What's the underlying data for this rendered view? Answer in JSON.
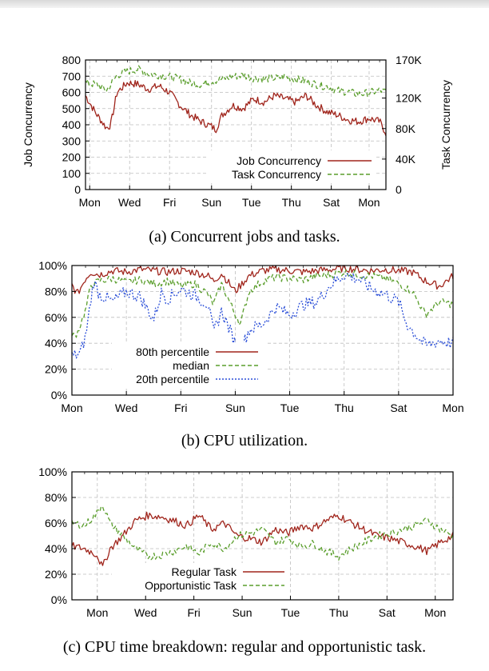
{
  "chart_data": [
    {
      "type": "line",
      "caption": "(a) Concurrent jobs and tasks.",
      "ylabel": "Job Concurrency",
      "y2label": "Task Concurrency",
      "ylim": [
        0,
        800
      ],
      "y2lim": [
        0,
        170000
      ],
      "yticks": [
        "800",
        "700",
        "600",
        "500",
        "400",
        "300",
        "200",
        "100",
        "0"
      ],
      "y2ticks": [
        {
          "label": "170K",
          "value": 170000
        },
        {
          "label": "120K",
          "value": 120000
        },
        {
          "label": "80K",
          "value": 80000
        },
        {
          "label": "40K",
          "value": 40000
        },
        {
          "label": "0",
          "value": 0
        }
      ],
      "xticks": [
        "Mon",
        "Wed",
        "Fri",
        "Sun",
        "Tue",
        "Thu",
        "Sat",
        "Mon"
      ],
      "xtick_days": [
        0.2,
        2.1,
        4.0,
        6.0,
        7.9,
        9.8,
        11.7,
        13.5
      ],
      "xrange_days": [
        0,
        14.3
      ],
      "legend_position": "lower-right",
      "grid": true,
      "series": [
        {
          "name": "Job Concurrency",
          "axis": "left",
          "color": "#a0251c",
          "dash": "solid",
          "x": [
            0,
            0.5,
            1,
            1.2,
            1.5,
            2,
            2.5,
            3,
            3.5,
            4,
            4.5,
            5,
            5.5,
            6,
            6.2,
            6.5,
            7,
            7.5,
            8,
            8.5,
            9,
            9.5,
            10,
            10.5,
            11,
            11.5,
            12,
            12.5,
            13,
            13.5,
            14,
            14.3
          ],
          "values": [
            580,
            470,
            380,
            400,
            600,
            660,
            650,
            620,
            640,
            600,
            520,
            460,
            420,
            390,
            370,
            460,
            520,
            500,
            560,
            540,
            580,
            560,
            540,
            580,
            520,
            480,
            460,
            430,
            420,
            440,
            420,
            350
          ]
        },
        {
          "name": "Task Concurrency",
          "axis": "right",
          "color": "#5a9e2c",
          "dash": "dashed",
          "x": [
            0,
            0.5,
            1,
            1.5,
            2,
            2.5,
            3,
            3.5,
            4,
            4.5,
            5,
            5.5,
            6,
            6.5,
            7,
            7.5,
            8,
            8.5,
            9,
            9.5,
            10,
            10.5,
            11,
            11.5,
            12,
            12.5,
            13,
            13.5,
            14,
            14.3
          ],
          "values": [
            140000,
            138000,
            130000,
            150000,
            155000,
            158000,
            152000,
            150000,
            148000,
            145000,
            140000,
            138000,
            142000,
            145000,
            148000,
            150000,
            146000,
            145000,
            146000,
            148000,
            145000,
            142000,
            138000,
            135000,
            130000,
            128000,
            125000,
            127000,
            130000,
            128000
          ]
        }
      ]
    },
    {
      "type": "line",
      "caption": "(b) CPU utilization.",
      "ylim": [
        0,
        100
      ],
      "yticks": [
        "100%",
        "80%",
        "60%",
        "40%",
        "20%",
        "0%"
      ],
      "xticks": [
        "Mon",
        "Wed",
        "Fri",
        "Sun",
        "Tue",
        "Thu",
        "Sat",
        "Mon"
      ],
      "xtick_days": [
        0,
        2,
        4,
        6,
        8,
        10,
        12,
        14
      ],
      "xrange_days": [
        0,
        14
      ],
      "legend_position": "lower-left",
      "grid": true,
      "series": [
        {
          "name": "80th percentile",
          "color": "#a0251c",
          "dash": "solid",
          "x": [
            0,
            0.2,
            0.5,
            0.7,
            1,
            1.5,
            2,
            2.5,
            3,
            3.5,
            4,
            4.5,
            5,
            5.2,
            5.5,
            6,
            6.5,
            7,
            7.5,
            8,
            8.5,
            9,
            9.5,
            10,
            10.5,
            11,
            11.5,
            12,
            12.5,
            13,
            13.5,
            14
          ],
          "values": [
            85,
            78,
            90,
            95,
            93,
            96,
            95,
            97,
            96,
            95,
            96,
            95,
            92,
            88,
            94,
            80,
            92,
            96,
            97,
            96,
            95,
            96,
            97,
            98,
            97,
            96,
            97,
            96,
            95,
            88,
            84,
            92
          ]
        },
        {
          "name": "median",
          "color": "#5a9e2c",
          "dash": "dashed",
          "x": [
            0,
            0.2,
            0.5,
            0.7,
            1,
            1.5,
            2,
            2.5,
            3,
            3.5,
            4,
            4.5,
            5,
            5.2,
            5.5,
            6,
            6.2,
            6.5,
            7,
            7.5,
            8,
            8.5,
            9,
            9.5,
            10,
            10.5,
            11,
            11.5,
            12,
            12.5,
            13,
            13.5,
            14
          ],
          "values": [
            45,
            48,
            65,
            85,
            88,
            90,
            87,
            89,
            86,
            88,
            84,
            86,
            78,
            70,
            86,
            62,
            55,
            80,
            88,
            91,
            90,
            89,
            92,
            93,
            95,
            93,
            92,
            90,
            86,
            80,
            62,
            72,
            70
          ]
        },
        {
          "name": "20th percentile",
          "color": "#2b4fd8",
          "dash": "dotted",
          "x": [
            0,
            0.3,
            0.5,
            0.8,
            1,
            1.5,
            2,
            2.5,
            3,
            3.3,
            3.5,
            4,
            4.5,
            5,
            5.2,
            5.5,
            6,
            6.2,
            6.5,
            7,
            7.5,
            8,
            8.5,
            9,
            9.5,
            10,
            10.5,
            11,
            11.5,
            12,
            12.3,
            12.7,
            13,
            13.5,
            14
          ],
          "values": [
            30,
            32,
            45,
            88,
            78,
            72,
            80,
            76,
            58,
            80,
            74,
            82,
            77,
            70,
            48,
            65,
            40,
            35,
            50,
            55,
            68,
            62,
            70,
            72,
            85,
            93,
            90,
            82,
            78,
            72,
            55,
            45,
            38,
            42,
            40
          ]
        }
      ]
    },
    {
      "type": "line",
      "caption": "(c) CPU time breakdown: regular and opportunistic task.",
      "ylim": [
        0,
        100
      ],
      "yticks": [
        "100%",
        "80%",
        "60%",
        "40%",
        "20%",
        "0%"
      ],
      "xticks": [
        "Mon",
        "Wed",
        "Fri",
        "Sun",
        "Tue",
        "Thu",
        "Sat",
        "Mon"
      ],
      "xtick_days": [
        1.0,
        2.9,
        4.8,
        6.7,
        8.6,
        10.5,
        12.4,
        14.3
      ],
      "xrange_days": [
        0,
        15
      ],
      "legend_position": "lower-middle",
      "grid": true,
      "series": [
        {
          "name": "Regular Task",
          "color": "#a0251c",
          "dash": "solid",
          "x": [
            0,
            0.5,
            1,
            1.2,
            1.5,
            2,
            2.5,
            3,
            3.5,
            4,
            4.5,
            5,
            5.5,
            6,
            6.5,
            7,
            7.5,
            8,
            8.5,
            9,
            9.5,
            10,
            10.5,
            11,
            11.5,
            12,
            12.5,
            13,
            13.5,
            14,
            14.5,
            15
          ],
          "values": [
            42,
            40,
            35,
            25,
            40,
            50,
            62,
            66,
            65,
            62,
            58,
            66,
            55,
            60,
            50,
            48,
            45,
            55,
            52,
            58,
            56,
            62,
            66,
            60,
            55,
            50,
            48,
            45,
            42,
            38,
            45,
            50
          ]
        },
        {
          "name": "Opportunistic Task",
          "color": "#5a9e2c",
          "dash": "dashed",
          "x": [
            0,
            0.5,
            1,
            1.2,
            1.5,
            2,
            2.5,
            3,
            3.5,
            4,
            4.5,
            5,
            5.5,
            6,
            6.5,
            7,
            7.5,
            8,
            8.5,
            9,
            9.5,
            10,
            10.5,
            11,
            11.5,
            12,
            12.5,
            13,
            13.5,
            14,
            14.5,
            15
          ],
          "values": [
            60,
            58,
            68,
            75,
            60,
            50,
            40,
            34,
            35,
            38,
            42,
            36,
            45,
            40,
            50,
            52,
            55,
            45,
            48,
            42,
            44,
            38,
            34,
            40,
            45,
            50,
            52,
            55,
            58,
            62,
            55,
            50
          ]
        }
      ]
    }
  ]
}
